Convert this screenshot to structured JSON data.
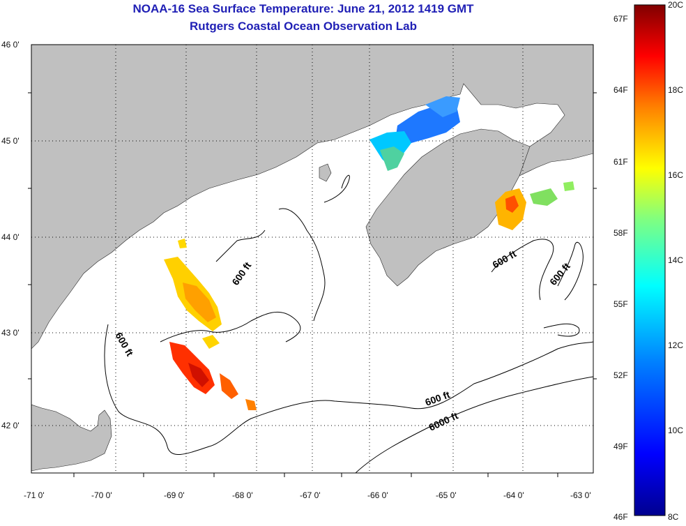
{
  "title_line1": "NOAA-16 Sea Surface Temperature:  June 21, 2012 1419 GMT",
  "title_line2": "Rutgers Coastal Ocean Observation Lab",
  "map": {
    "lat_labels": [
      "46 0'",
      "45 0'",
      "44 0'",
      "43 0'",
      "42 0'"
    ],
    "lon_labels": [
      "-71 0'",
      "-70 0'",
      "-69 0'",
      "-68 0'",
      "-67 0'",
      "-66 0'",
      "-65 0'",
      "-64 0'",
      "-63 0'"
    ],
    "contour_labels": [
      "600 ft",
      "600 ft",
      "600 ft",
      "600 ft",
      "600 ft",
      "6000 ft"
    ],
    "colors": {
      "land": "#c0c0c0",
      "ocean": "#ffffff",
      "grid": "#000000"
    }
  },
  "colorbar": {
    "fahrenheit_labels": [
      "67F",
      "64F",
      "61F",
      "58F",
      "55F",
      "52F",
      "49F",
      "46F"
    ],
    "celsius_labels": [
      "20C",
      "18C",
      "16C",
      "14C",
      "12C",
      "10C",
      "8C"
    ],
    "stops": [
      "#800000",
      "#ff0000",
      "#ff8000",
      "#ffff00",
      "#80ff80",
      "#00ffff",
      "#0080ff",
      "#0000ff",
      "#00008f"
    ]
  }
}
